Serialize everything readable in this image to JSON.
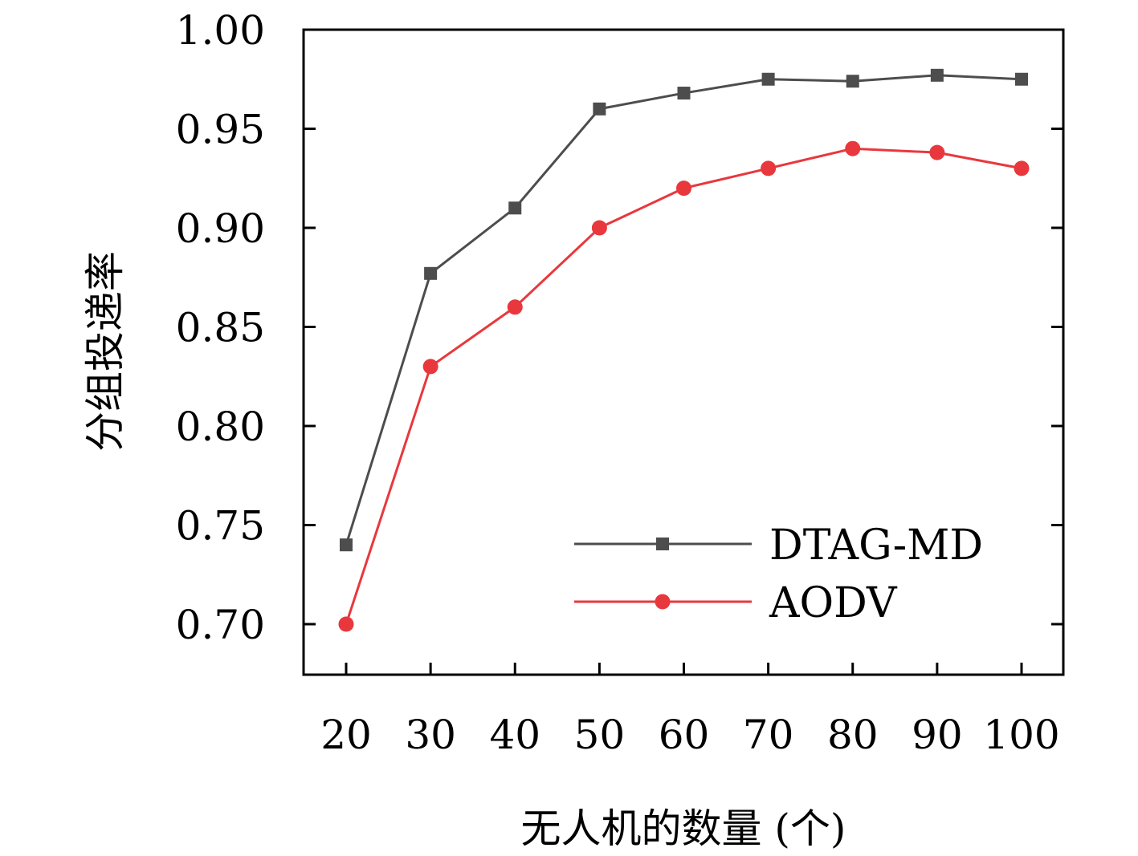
{
  "chart_data": {
    "type": "line",
    "x": [
      20,
      30,
      40,
      50,
      60,
      70,
      80,
      90,
      100
    ],
    "x_tick_labels": [
      "20",
      "30",
      "40",
      "50",
      "60",
      "70",
      "80",
      "90",
      "100"
    ],
    "y_tick_values": [
      0.7,
      0.75,
      0.8,
      0.85,
      0.9,
      0.95,
      1.0
    ],
    "y_tick_labels": [
      "0.70",
      "0.75",
      "0.80",
      "0.85",
      "0.90",
      "0.95",
      "1.00"
    ],
    "ylim": [
      0.675,
      1.0
    ],
    "xlabel": "无人机的数量 (个)",
    "ylabel": "分组投递率",
    "grid": false,
    "legend_position": "bottom-right",
    "series": [
      {
        "name": "DTAG-MD",
        "color": "#4d4d4d",
        "marker": "square",
        "values": [
          0.74,
          0.877,
          0.91,
          0.96,
          0.968,
          0.975,
          0.974,
          0.977,
          0.975
        ]
      },
      {
        "name": "AODV",
        "color": "#e8383d",
        "marker": "circle",
        "values": [
          0.7,
          0.83,
          0.86,
          0.9,
          0.92,
          0.93,
          0.94,
          0.938,
          0.93
        ]
      }
    ]
  }
}
